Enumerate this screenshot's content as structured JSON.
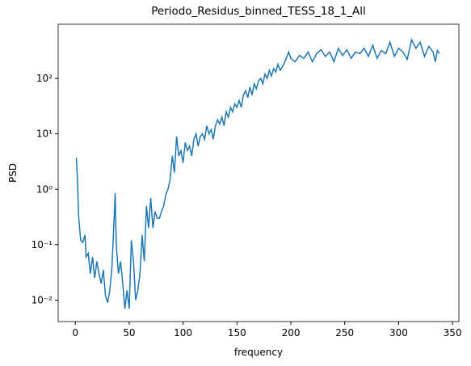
{
  "chart_data": {
    "type": "line",
    "title": "Periodo_Residus_binned_TESS_18_1_All",
    "xlabel": "frequency",
    "ylabel": "PSD",
    "yscale": "log",
    "color": "#1f77b4",
    "x": [
      1,
      2,
      3,
      4,
      5,
      7,
      9,
      10,
      12,
      14,
      16,
      18,
      20,
      22,
      24,
      26,
      28,
      30,
      32,
      34,
      36,
      37,
      38,
      40,
      42,
      44,
      46,
      48,
      50,
      52,
      54,
      56,
      58,
      60,
      62,
      64,
      66,
      68,
      70,
      72,
      74,
      76,
      78,
      80,
      82,
      84,
      86,
      88,
      90,
      92,
      94,
      96,
      98,
      100,
      102,
      104,
      106,
      108,
      110,
      112,
      114,
      116,
      118,
      120,
      122,
      124,
      126,
      128,
      130,
      132,
      134,
      136,
      138,
      140,
      142,
      144,
      146,
      148,
      150,
      152,
      154,
      156,
      158,
      160,
      162,
      164,
      166,
      168,
      170,
      172,
      174,
      176,
      178,
      180,
      182,
      184,
      186,
      188,
      190,
      192,
      194,
      196,
      198,
      200,
      204,
      208,
      212,
      216,
      220,
      224,
      228,
      232,
      236,
      240,
      244,
      248,
      252,
      256,
      260,
      264,
      268,
      272,
      276,
      280,
      284,
      288,
      292,
      296,
      300,
      304,
      308,
      312,
      316,
      320,
      324,
      328,
      332,
      334,
      336,
      338
    ],
    "values": [
      3.7,
      1.5,
      0.35,
      0.2,
      0.12,
      0.11,
      0.15,
      0.06,
      0.07,
      0.03,
      0.06,
      0.025,
      0.05,
      0.03,
      0.02,
      0.035,
      0.012,
      0.009,
      0.015,
      0.04,
      0.3,
      0.85,
      0.1,
      0.03,
      0.05,
      0.02,
      0.007,
      0.015,
      0.007,
      0.12,
      0.05,
      0.01,
      0.015,
      0.03,
      0.15,
      0.05,
      0.5,
      0.2,
      0.7,
      0.2,
      0.4,
      0.3,
      0.3,
      0.4,
      0.5,
      0.8,
      1.0,
      1.5,
      4,
      2,
      9,
      4,
      5,
      3,
      7,
      5,
      6,
      4,
      8,
      10,
      6,
      9,
      10,
      8,
      14,
      10,
      12,
      8,
      14,
      18,
      15,
      20,
      14,
      25,
      20,
      30,
      25,
      35,
      30,
      40,
      30,
      50,
      60,
      45,
      70,
      50,
      80,
      65,
      90,
      100,
      80,
      120,
      100,
      140,
      110,
      150,
      130,
      180,
      140,
      160,
      190,
      240,
      300,
      230,
      200,
      260,
      230,
      300,
      200,
      280,
      330,
      250,
      300,
      200,
      350,
      260,
      330,
      230,
      300,
      280,
      350,
      250,
      400,
      230,
      320,
      280,
      450,
      250,
      350,
      300,
      220,
      500,
      350,
      450,
      250,
      380,
      300,
      200,
      320,
      280
    ],
    "xlim": [
      -15.9,
      355.9
    ],
    "xticks": [
      0,
      50,
      100,
      150,
      200,
      250,
      300,
      350
    ],
    "ylim": [
      0.0041,
      950
    ],
    "yticks": [
      {
        "value": 0.01,
        "label": "10⁻²"
      },
      {
        "value": 0.1,
        "label": "10⁻¹"
      },
      {
        "value": 1,
        "label": "10⁰"
      },
      {
        "value": 10,
        "label": "10¹"
      },
      {
        "value": 100,
        "label": "10²"
      }
    ]
  }
}
